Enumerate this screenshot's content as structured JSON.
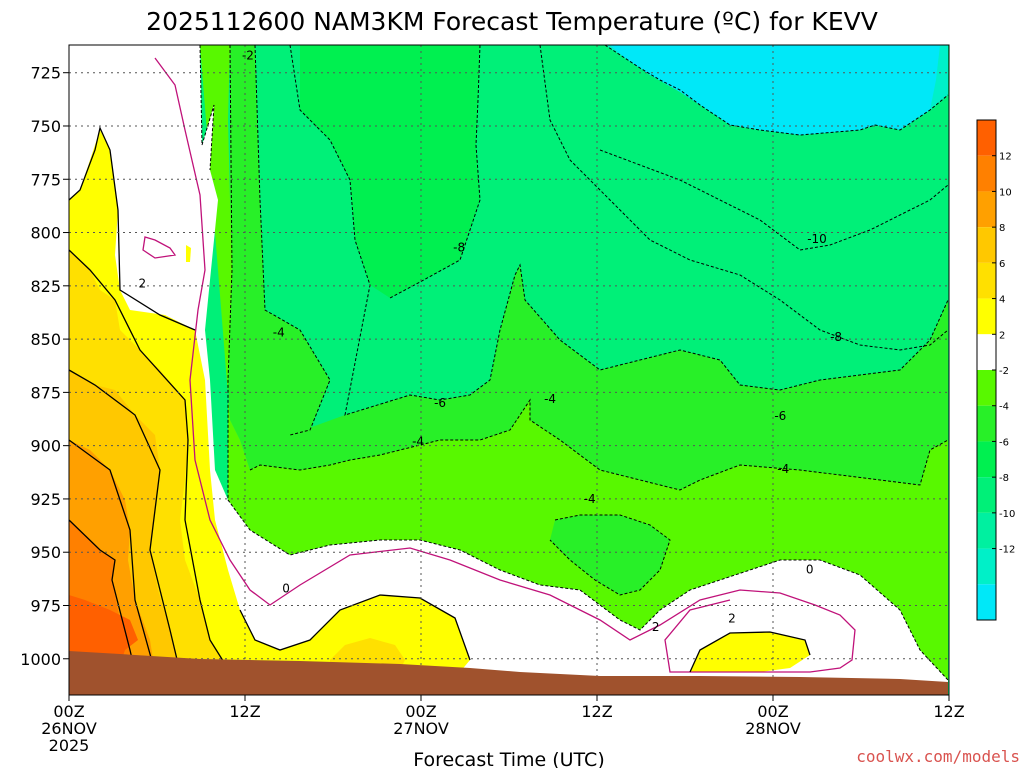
{
  "chart_data": {
    "type": "heatmap",
    "title": "2025112600 NAM3KM Forecast Temperature (ºC) for KEVV",
    "xlabel": "Forecast Time (UTC)",
    "ylabel": "",
    "x_ticks": [
      {
        "hour": 0,
        "line1": "00Z",
        "line2": "26NOV",
        "line3": "2025"
      },
      {
        "hour": 12,
        "line1": "12Z",
        "line2": "",
        "line3": ""
      },
      {
        "hour": 24,
        "line1": "00Z",
        "line2": "27NOV",
        "line3": ""
      },
      {
        "hour": 36,
        "line1": "12Z",
        "line2": "",
        "line3": ""
      },
      {
        "hour": 48,
        "line1": "00Z",
        "line2": "28NOV",
        "line3": ""
      },
      {
        "hour": 60,
        "line1": "12Z",
        "line2": "",
        "line3": ""
      }
    ],
    "xlim": [
      0,
      60
    ],
    "y_ticks": [
      725,
      750,
      775,
      800,
      825,
      850,
      875,
      900,
      925,
      950,
      975,
      1000
    ],
    "ylim": [
      712,
      1017
    ],
    "grid": true,
    "colorbar": {
      "boundaries": [
        -14,
        -12,
        -10,
        -8,
        -6,
        -4,
        -2,
        2,
        4,
        6,
        8,
        10,
        12,
        14
      ],
      "colors": [
        "#00e8f8",
        "#00f0c8",
        "#00f0a0",
        "#00f078",
        "#00f050",
        "#28f028",
        "#58f800",
        "#ffffff",
        "#ffff00",
        "#ffe000",
        "#ffc800",
        "#ffa000",
        "#ff8000",
        "#ff6000"
      ],
      "tick_labels": [
        "12",
        "10",
        "8",
        "6",
        "4",
        "2",
        "-2",
        "-4",
        "-6",
        "-8",
        "-10",
        "-12"
      ]
    },
    "contour_labels": [
      {
        "text": "-2",
        "hour": 12.2,
        "p": 717
      },
      {
        "text": "2",
        "hour": 5.0,
        "p": 824
      },
      {
        "text": "-4",
        "hour": 14.3,
        "p": 847
      },
      {
        "text": "-8",
        "hour": 26.6,
        "p": 807
      },
      {
        "text": "-10",
        "hour": 51.0,
        "p": 803
      },
      {
        "text": "-8",
        "hour": 52.3,
        "p": 849
      },
      {
        "text": "-6",
        "hour": 25.3,
        "p": 880
      },
      {
        "text": "-4",
        "hour": 23.8,
        "p": 898
      },
      {
        "text": "-4",
        "hour": 32.8,
        "p": 878
      },
      {
        "text": "-6",
        "hour": 48.5,
        "p": 886
      },
      {
        "text": "-4",
        "hour": 48.7,
        "p": 911
      },
      {
        "text": "-4",
        "hour": 35.5,
        "p": 925
      },
      {
        "text": "0",
        "hour": 14.8,
        "p": 967
      },
      {
        "text": "0",
        "hour": 50.5,
        "p": 958
      },
      {
        "text": "2",
        "hour": 40.0,
        "p": 985
      },
      {
        "text": "2",
        "hour": 45.2,
        "p": 981
      }
    ]
  },
  "credit": "coolwx.com/models"
}
